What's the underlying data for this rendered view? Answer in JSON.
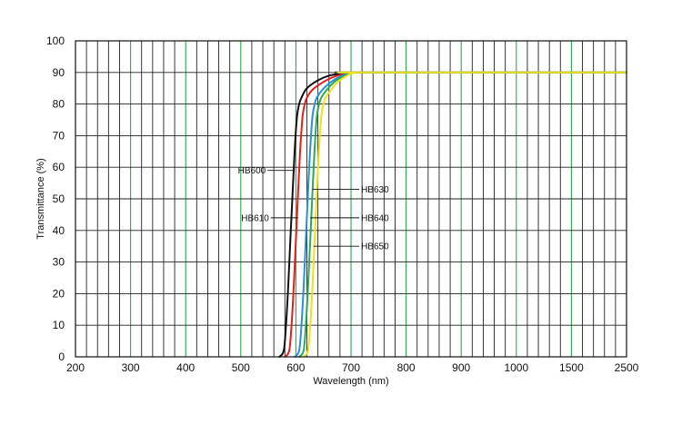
{
  "chart_data": {
    "type": "line",
    "title": "",
    "xlabel": "Wavelength (nm)",
    "ylabel": "Transmittance (%)",
    "ylim": [
      0,
      100
    ],
    "y_ticks": [
      "0",
      "10",
      "20",
      "30",
      "40",
      "50",
      "60",
      "70",
      "80",
      "90",
      "100"
    ],
    "x_ticks": [
      "200",
      "300",
      "400",
      "500",
      "600",
      "700",
      "800",
      "900",
      "1000",
      "1500",
      "2500"
    ],
    "x_axis_note": "piecewise axis: 200-1000 nm in 100 nm steps, then 1000-1500 and 1500-2500 each one major division",
    "grid": true,
    "grid_color_major": "#2aa84a",
    "grid_color_minor": "#222222",
    "legend": "none (curves labelled directly)",
    "series": [
      {
        "name": "HB600",
        "color": "#111111",
        "x": [
          570,
          578,
          582,
          586,
          590,
          594,
          598,
          602,
          606,
          610,
          620,
          640,
          660,
          680,
          700,
          710,
          2500
        ],
        "y": [
          0,
          2,
          10,
          22,
          37,
          52,
          66,
          76,
          80,
          82,
          85,
          87.5,
          89,
          89.6,
          90,
          90,
          90
        ]
      },
      {
        "name": "HB610",
        "color": "#e3201b",
        "x": [
          580,
          588,
          592,
          596,
          600,
          604,
          608,
          612,
          616,
          620,
          630,
          650,
          670,
          690,
          705,
          710,
          2500
        ],
        "y": [
          0,
          2,
          10,
          22,
          37,
          52,
          66,
          76,
          80,
          82,
          84.5,
          87,
          88.7,
          89.6,
          90,
          90,
          90
        ]
      },
      {
        "name": "HB630",
        "color": "#2a8fd6",
        "x": [
          598,
          606,
          610,
          614,
          618,
          622,
          626,
          630,
          634,
          638,
          648,
          664,
          680,
          695,
          708,
          712,
          2500
        ],
        "y": [
          0,
          2,
          10,
          22,
          37,
          52,
          66,
          76,
          80,
          82,
          84.5,
          87,
          88.7,
          89.6,
          90,
          90,
          90
        ]
      },
      {
        "name": "HB640",
        "color": "#2ca85a",
        "x": [
          606,
          614,
          618,
          622,
          626,
          630,
          634,
          638,
          642,
          646,
          656,
          670,
          685,
          698,
          708,
          712,
          2500
        ],
        "y": [
          0,
          2,
          10,
          22,
          37,
          52,
          66,
          76,
          80,
          82,
          84.5,
          87,
          88.7,
          89.6,
          90,
          90,
          90
        ]
      },
      {
        "name": "HB650",
        "color": "#f0e01a",
        "x": [
          614,
          622,
          626,
          630,
          634,
          638,
          642,
          646,
          650,
          654,
          664,
          676,
          690,
          700,
          710,
          714,
          2500
        ],
        "y": [
          0,
          2,
          10,
          22,
          37,
          52,
          66,
          76,
          80,
          82,
          84.5,
          87,
          88.7,
          89.6,
          90,
          90,
          90
        ]
      }
    ],
    "annotations": [
      {
        "text": "HB600",
        "series": "HB600",
        "at_x": 598,
        "at_y": 59,
        "side": "left"
      },
      {
        "text": "HB610",
        "series": "HB610",
        "at_x": 604,
        "at_y": 44,
        "side": "left"
      },
      {
        "text": "HB630",
        "series": "HB630",
        "at_x": 630,
        "at_y": 53,
        "side": "right"
      },
      {
        "text": "HB640",
        "series": "HB640",
        "at_x": 626,
        "at_y": 44,
        "side": "right"
      },
      {
        "text": "HB650",
        "series": "HB650",
        "at_x": 632,
        "at_y": 35,
        "side": "right"
      }
    ]
  }
}
